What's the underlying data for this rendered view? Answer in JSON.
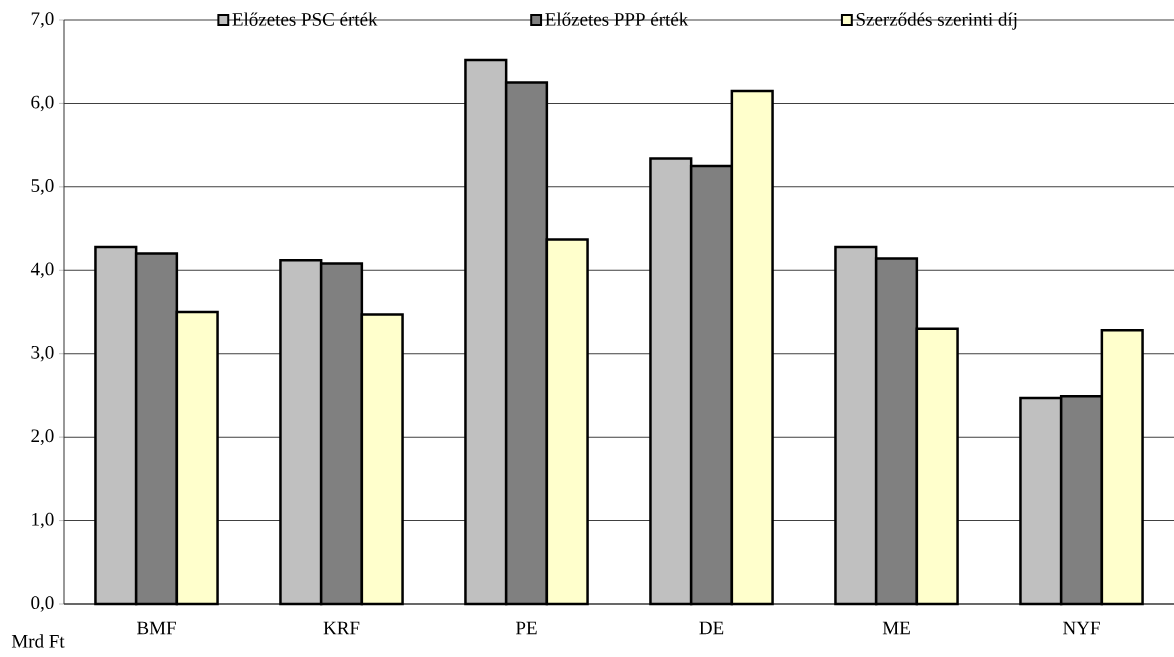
{
  "chart_data": {
    "type": "bar",
    "ylabel": "Mrd Ft",
    "categories": [
      "BMF",
      "KRF",
      "PE",
      "DE",
      "ME",
      "NYF"
    ],
    "series": [
      {
        "name": "Előzetes PSC érték",
        "color": "#c0c0c0",
        "values": [
          4.28,
          4.12,
          6.52,
          5.34,
          4.28,
          2.47
        ]
      },
      {
        "name": "Előzetes PPP érték",
        "color": "#808080",
        "values": [
          4.2,
          4.08,
          6.25,
          5.25,
          4.14,
          2.49
        ]
      },
      {
        "name": "Szerződés szerinti díj",
        "color": "#ffffcc",
        "values": [
          3.5,
          3.47,
          4.37,
          6.15,
          3.3,
          3.28
        ]
      }
    ],
    "ylim": [
      0,
      7
    ],
    "yticks": [
      {
        "value": 0,
        "label": "0,0"
      },
      {
        "value": 1,
        "label": "1,0"
      },
      {
        "value": 2,
        "label": "2,0"
      },
      {
        "value": 3,
        "label": "3,0"
      },
      {
        "value": 4,
        "label": "4,0"
      },
      {
        "value": 5,
        "label": "5,0"
      },
      {
        "value": 6,
        "label": "6,0"
      },
      {
        "value": 7,
        "label": "7,0"
      }
    ],
    "grid": "y",
    "legend": "top"
  }
}
